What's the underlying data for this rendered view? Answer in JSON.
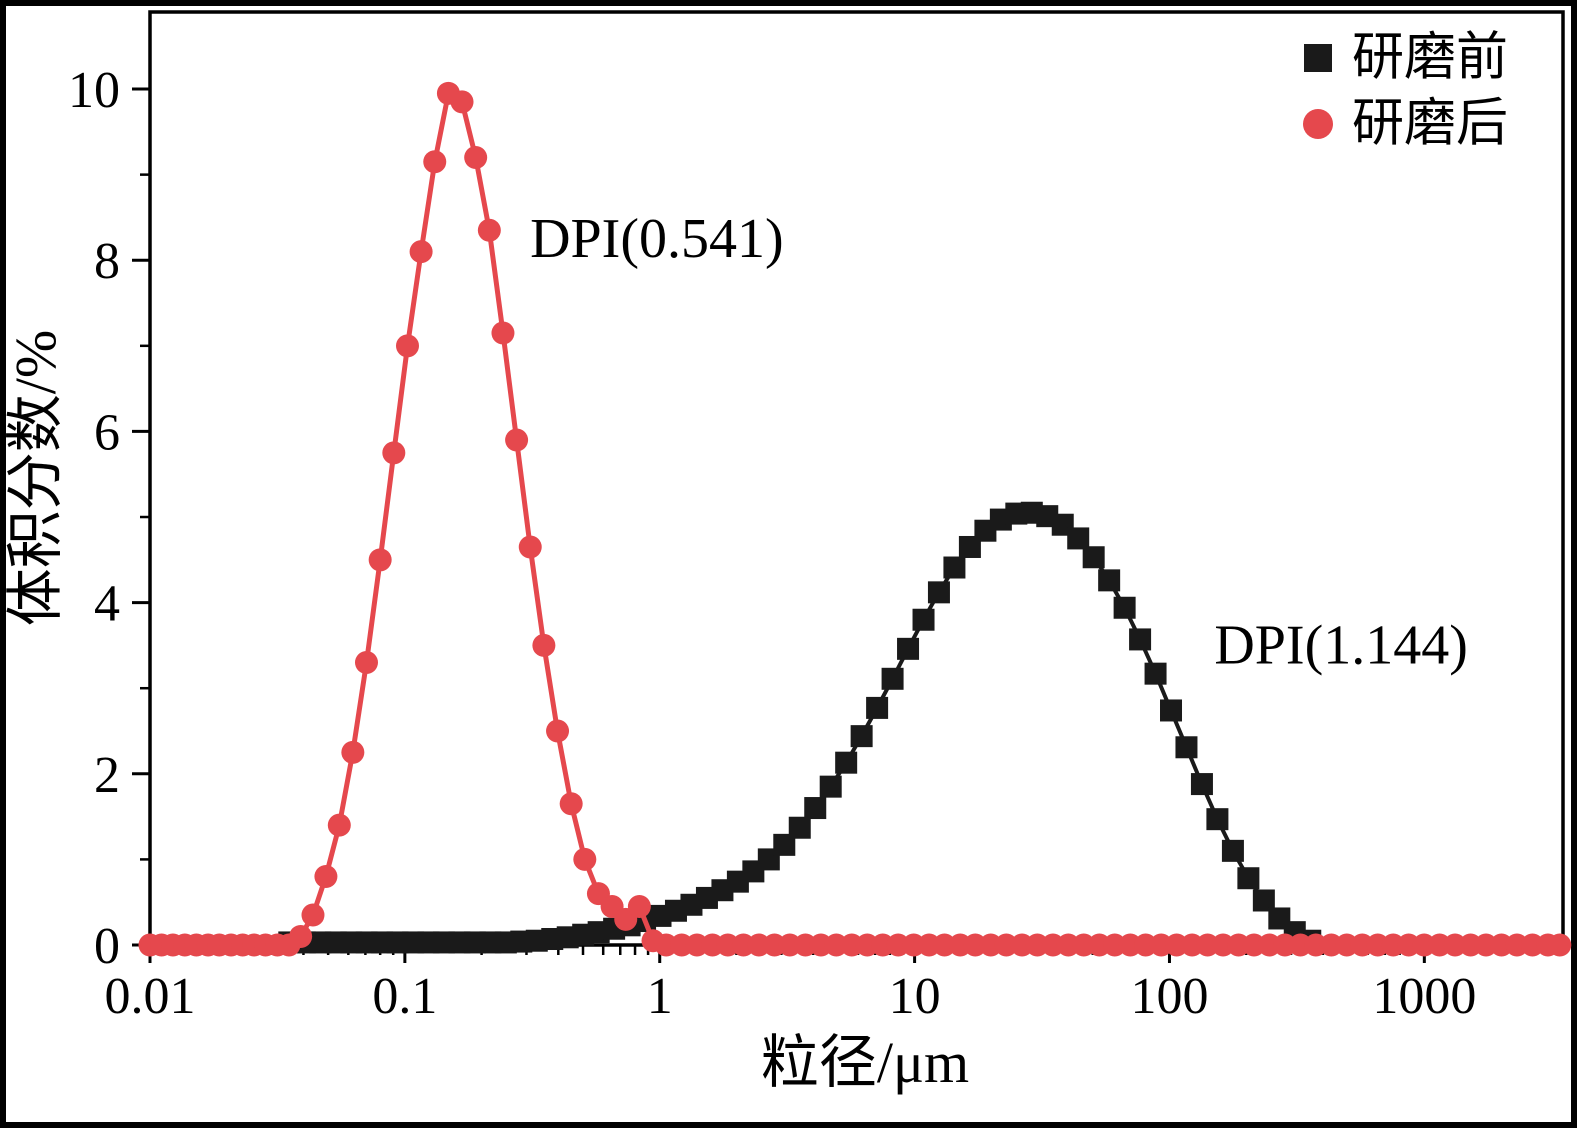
{
  "figure": {
    "background": "#ffffff",
    "border_color": "#000000"
  },
  "chart_data": {
    "type": "line",
    "title": "",
    "xlabel": "粒径/μm",
    "ylabel": "体积分数/%",
    "x_scale": "log",
    "x_range": [
      0.01,
      3500
    ],
    "y_range": [
      0,
      10.9
    ],
    "x_major_ticks": [
      0.01,
      0.1,
      1,
      10,
      100,
      1000
    ],
    "x_tick_labels": [
      "0.01",
      "0.1",
      "1",
      "10",
      "100",
      "1000"
    ],
    "y_major_ticks": [
      0,
      2,
      4,
      6,
      8,
      10
    ],
    "y_minor_ticks": [
      1,
      3,
      5,
      7,
      9
    ],
    "grid": false,
    "legend": {
      "position": "top-right",
      "items": [
        {
          "label": "研磨前",
          "marker": "square",
          "color": "#1a1a1a"
        },
        {
          "label": "研磨后",
          "marker": "circle",
          "color": "#e5484d"
        }
      ]
    },
    "annotations": [
      {
        "text": "DPI(0.541)",
        "x": 0.31,
        "y": 8.25,
        "series": "研磨后"
      },
      {
        "text": "DPI(1.144)",
        "x": 150,
        "y": 3.5,
        "series": "研磨前"
      }
    ],
    "series": [
      {
        "name": "研磨前",
        "marker": "square",
        "color": "#1a1a1a",
        "marker_size": 22,
        "line_width": 4,
        "points": [
          [
            0.0352,
            0.03
          ],
          [
            0.0405,
            0.03
          ],
          [
            0.0466,
            0.03
          ],
          [
            0.0536,
            0.03
          ],
          [
            0.0616,
            0.03
          ],
          [
            0.0708,
            0.03
          ],
          [
            0.0814,
            0.03
          ],
          [
            0.0936,
            0.03
          ],
          [
            0.1077,
            0.03
          ],
          [
            0.1238,
            0.03
          ],
          [
            0.1424,
            0.03
          ],
          [
            0.1637,
            0.03
          ],
          [
            0.1883,
            0.03
          ],
          [
            0.2165,
            0.03
          ],
          [
            0.249,
            0.03
          ],
          [
            0.2863,
            0.04
          ],
          [
            0.3293,
            0.05
          ],
          [
            0.3787,
            0.07
          ],
          [
            0.4355,
            0.09
          ],
          [
            0.5008,
            0.12
          ],
          [
            0.5759,
            0.15
          ],
          [
            0.6623,
            0.19
          ],
          [
            0.7616,
            0.23
          ],
          [
            0.8758,
            0.28
          ],
          [
            1.007,
            0.34
          ],
          [
            1.158,
            0.4
          ],
          [
            1.332,
            0.47
          ],
          [
            1.532,
            0.55
          ],
          [
            1.762,
            0.64
          ],
          [
            2.026,
            0.74
          ],
          [
            2.33,
            0.86
          ],
          [
            2.679,
            1.0
          ],
          [
            3.081,
            1.17
          ],
          [
            3.543,
            1.37
          ],
          [
            4.075,
            1.6
          ],
          [
            4.686,
            1.85
          ],
          [
            5.389,
            2.13
          ],
          [
            6.197,
            2.44
          ],
          [
            7.127,
            2.77
          ],
          [
            8.196,
            3.11
          ],
          [
            9.425,
            3.46
          ],
          [
            10.84,
            3.8
          ],
          [
            12.46,
            4.12
          ],
          [
            14.33,
            4.41
          ],
          [
            16.48,
            4.65
          ],
          [
            18.96,
            4.84
          ],
          [
            21.8,
            4.97
          ],
          [
            25.07,
            5.04
          ],
          [
            28.83,
            5.05
          ],
          [
            33.15,
            5.01
          ],
          [
            38.13,
            4.91
          ],
          [
            43.85,
            4.75
          ],
          [
            50.42,
            4.53
          ],
          [
            57.99,
            4.26
          ],
          [
            66.68,
            3.94
          ],
          [
            76.69,
            3.57
          ],
          [
            88.19,
            3.17
          ],
          [
            101.4,
            2.74
          ],
          [
            116.6,
            2.31
          ],
          [
            134.1,
            1.88
          ],
          [
            154.2,
            1.47
          ],
          [
            177.4,
            1.1
          ],
          [
            204.0,
            0.78
          ],
          [
            234.6,
            0.52
          ],
          [
            269.8,
            0.31
          ],
          [
            310.2,
            0.15
          ],
          [
            356.8,
            0.05
          ]
        ]
      },
      {
        "name": "研磨后",
        "marker": "circle",
        "color": "#e5484d",
        "marker_size": 23,
        "line_width": 5,
        "points": [
          [
            0.01,
            0
          ],
          [
            0.0111,
            0
          ],
          [
            0.0123,
            0
          ],
          [
            0.0137,
            0
          ],
          [
            0.0152,
            0
          ],
          [
            0.0169,
            0
          ],
          [
            0.0187,
            0
          ],
          [
            0.0208,
            0
          ],
          [
            0.0231,
            0
          ],
          [
            0.0256,
            0
          ],
          [
            0.0284,
            0
          ],
          [
            0.0316,
            0
          ],
          [
            0.0351,
            0
          ],
          [
            0.039,
            0.1
          ],
          [
            0.0436,
            0.35
          ],
          [
            0.049,
            0.8
          ],
          [
            0.0553,
            1.4
          ],
          [
            0.0625,
            2.25
          ],
          [
            0.0707,
            3.3
          ],
          [
            0.08,
            4.5
          ],
          [
            0.0905,
            5.75
          ],
          [
            0.1024,
            7.0
          ],
          [
            0.1158,
            8.1
          ],
          [
            0.131,
            9.15
          ],
          [
            0.1482,
            9.95
          ],
          [
            0.1676,
            9.85
          ],
          [
            0.1896,
            9.2
          ],
          [
            0.2145,
            8.35
          ],
          [
            0.2426,
            7.15
          ],
          [
            0.2744,
            5.9
          ],
          [
            0.3104,
            4.65
          ],
          [
            0.3511,
            3.5
          ],
          [
            0.3972,
            2.5
          ],
          [
            0.4493,
            1.65
          ],
          [
            0.5082,
            1.0
          ],
          [
            0.5748,
            0.6
          ],
          [
            0.6502,
            0.45
          ],
          [
            0.7355,
            0.3
          ],
          [
            0.832,
            0.45
          ],
          [
            0.9412,
            0.05
          ],
          [
            1.06,
            0
          ],
          [
            1.22,
            0
          ],
          [
            1.4,
            0
          ],
          [
            1.61,
            0
          ],
          [
            1.85,
            0
          ],
          [
            2.13,
            0
          ],
          [
            2.45,
            0
          ],
          [
            2.82,
            0
          ],
          [
            3.24,
            0
          ],
          [
            3.73,
            0
          ],
          [
            4.29,
            0
          ],
          [
            4.93,
            0
          ],
          [
            5.67,
            0
          ],
          [
            6.52,
            0
          ],
          [
            7.5,
            0
          ],
          [
            8.62,
            0
          ],
          [
            9.92,
            0
          ],
          [
            11.4,
            0
          ],
          [
            13.1,
            0
          ],
          [
            15.1,
            0
          ],
          [
            17.3,
            0
          ],
          [
            19.9,
            0
          ],
          [
            22.9,
            0
          ],
          [
            26.4,
            0
          ],
          [
            30.3,
            0
          ],
          [
            34.9,
            0
          ],
          [
            40.1,
            0
          ],
          [
            46.1,
            0
          ],
          [
            53.1,
            0
          ],
          [
            61.0,
            0
          ],
          [
            70.2,
            0
          ],
          [
            80.7,
            0
          ],
          [
            92.8,
            0
          ],
          [
            106.7,
            0
          ],
          [
            122.7,
            0
          ],
          [
            141.1,
            0
          ],
          [
            162.3,
            0
          ],
          [
            186.6,
            0
          ],
          [
            214.6,
            0
          ],
          [
            246.8,
            0
          ],
          [
            283.8,
            0
          ],
          [
            326.4,
            0
          ],
          [
            375.3,
            0
          ],
          [
            431.6,
            0
          ],
          [
            496.4,
            0
          ],
          [
            570.8,
            0
          ],
          [
            656.5,
            0
          ],
          [
            754.9,
            0
          ],
          [
            868.2,
            0
          ],
          [
            998.4,
            0
          ],
          [
            1148,
            0
          ],
          [
            1320,
            0
          ],
          [
            1519,
            0
          ],
          [
            1746,
            0
          ],
          [
            2008,
            0
          ],
          [
            2309,
            0
          ],
          [
            2656,
            0
          ],
          [
            3054,
            0
          ],
          [
            3400,
            0
          ]
        ]
      }
    ]
  }
}
